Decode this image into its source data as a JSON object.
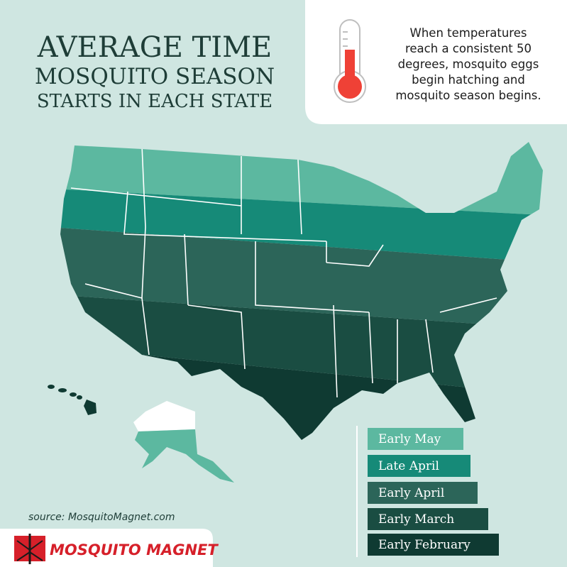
{
  "title": {
    "lines": [
      "AVERAGE TIME",
      "MOSQUITO SEASON",
      "STARTS IN EACH STATE"
    ]
  },
  "info": {
    "lines": [
      "When temperatures",
      "reach a consistent 50",
      "degrees, mosquito eggs",
      "begin hatching and",
      "mosquito season begins."
    ]
  },
  "legend": {
    "items": [
      "Early May",
      "Late April",
      "Early April",
      "Early March",
      "Early February"
    ]
  },
  "source": "source: MosquitoMagnet.com",
  "logo": {
    "text": "MOSQUITO MAGNET"
  }
}
